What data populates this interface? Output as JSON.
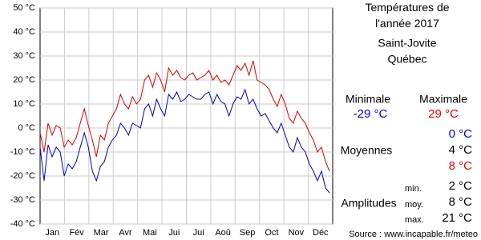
{
  "chart_data": {
    "type": "line",
    "title": "Températures de l'année 2017",
    "location": [
      "Saint-Jovite",
      "Québec"
    ],
    "month_labels": [
      "Jan",
      "Fév",
      "Mar",
      "Avr",
      "Mai",
      "Jui",
      "Jui",
      "Aoû",
      "Sep",
      "Oct",
      "Nov",
      "Déc"
    ],
    "x": [
      1,
      6,
      11,
      16,
      21,
      26,
      31,
      36,
      41,
      46,
      51,
      56,
      61,
      66,
      71,
      76,
      81,
      86,
      91,
      96,
      101,
      106,
      111,
      116,
      121,
      126,
      131,
      136,
      141,
      146,
      151,
      156,
      161,
      166,
      171,
      176,
      181,
      186,
      191,
      196,
      201,
      206,
      211,
      216,
      221,
      226,
      231,
      236,
      241,
      246,
      251,
      256,
      261,
      266,
      271,
      276,
      281,
      286,
      291,
      296,
      301,
      306,
      311,
      316,
      321,
      326,
      331,
      336,
      341,
      346,
      351,
      356,
      361
    ],
    "xlim": [
      1,
      365
    ],
    "ylim": [
      -40,
      50
    ],
    "yticks": [
      {
        "value": 50,
        "label": "50 °C"
      },
      {
        "value": 40,
        "label": "40 °C"
      },
      {
        "value": 30,
        "label": "30 °C"
      },
      {
        "value": 20,
        "label": "20 °C"
      },
      {
        "value": 10,
        "label": "10 °C"
      },
      {
        "value": 0,
        "label": "0 °C"
      },
      {
        "value": -10,
        "label": "-10 °C"
      },
      {
        "value": -20,
        "label": "-20 °C"
      },
      {
        "value": -30,
        "label": "-30 °C"
      },
      {
        "value": -40,
        "label": "-40 °C"
      }
    ],
    "grid": true,
    "series": [
      {
        "color": "#dd0000",
        "values": [
          -2,
          -10,
          2,
          -3,
          1,
          0,
          -8,
          -5,
          -7,
          -4,
          2,
          8,
          1,
          -5,
          -12,
          -3,
          -5,
          2,
          5,
          8,
          14,
          10,
          8,
          13,
          10,
          12,
          20,
          22,
          17,
          23,
          20,
          15,
          25,
          22,
          24,
          21,
          20,
          22,
          23,
          20,
          21,
          22,
          24,
          20,
          22,
          19,
          20,
          18,
          22,
          26,
          24,
          27,
          22,
          28,
          20,
          19,
          18,
          16,
          12,
          9,
          14,
          10,
          4,
          2,
          7,
          4,
          2,
          -2,
          -5,
          -10,
          -8,
          -14,
          -18
        ]
      },
      {
        "color": "#0000cc",
        "values": [
          -8,
          -22,
          -7,
          -12,
          -8,
          -10,
          -20,
          -15,
          -17,
          -14,
          -8,
          -2,
          -8,
          -18,
          -22,
          -16,
          -14,
          -8,
          -5,
          -3,
          2,
          0,
          -3,
          2,
          1,
          0,
          8,
          10,
          5,
          12,
          8,
          5,
          14,
          12,
          15,
          11,
          12,
          14,
          13,
          12,
          12,
          14,
          15,
          10,
          14,
          11,
          10,
          5,
          10,
          13,
          12,
          16,
          10,
          12,
          8,
          5,
          6,
          3,
          0,
          -2,
          2,
          -3,
          -8,
          -10,
          -4,
          -8,
          -10,
          -15,
          -18,
          -22,
          -18,
          -25,
          -27
        ]
      }
    ],
    "summary": {
      "min_label": "Minimale",
      "max_label": "Maximale",
      "min": "-29 °C",
      "max": "29 °C",
      "averages_label": "Moyennes",
      "averages": [
        "0 °C",
        "4 °C",
        "8 °C"
      ],
      "amplitudes_label": "Amplitudes",
      "amplitude_names": [
        "min.",
        "moy.",
        "max."
      ],
      "amplitudes": [
        "2 °C",
        "8 °C",
        "21 °C"
      ]
    },
    "source": "Source : www.incapable.fr/meteo"
  }
}
